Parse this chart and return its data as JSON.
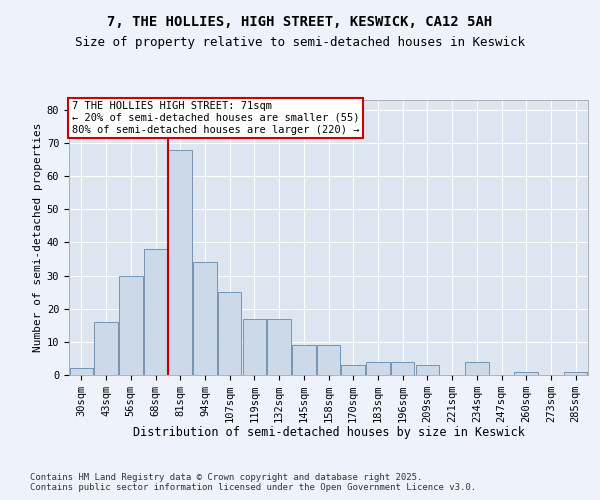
{
  "title1": "7, THE HOLLIES, HIGH STREET, KESWICK, CA12 5AH",
  "title2": "Size of property relative to semi-detached houses in Keswick",
  "xlabel": "Distribution of semi-detached houses by size in Keswick",
  "ylabel": "Number of semi-detached properties",
  "categories": [
    "30sqm",
    "43sqm",
    "56sqm",
    "68sqm",
    "81sqm",
    "94sqm",
    "107sqm",
    "119sqm",
    "132sqm",
    "145sqm",
    "158sqm",
    "170sqm",
    "183sqm",
    "196sqm",
    "209sqm",
    "221sqm",
    "234sqm",
    "247sqm",
    "260sqm",
    "273sqm",
    "285sqm"
  ],
  "values": [
    2,
    16,
    30,
    38,
    68,
    34,
    25,
    17,
    17,
    9,
    9,
    3,
    4,
    4,
    3,
    0,
    4,
    0,
    1,
    0,
    1
  ],
  "bar_color": "#ccd9e8",
  "bar_edge_color": "#6688aa",
  "vline_color": "#bb0000",
  "annotation_line1": "7 THE HOLLIES HIGH STREET: 71sqm",
  "annotation_line2": "← 20% of semi-detached houses are smaller (55)",
  "annotation_line3": "80% of semi-detached houses are larger (220) →",
  "annotation_box_edgecolor": "#cc0000",
  "footer": "Contains HM Land Registry data © Crown copyright and database right 2025.\nContains public sector information licensed under the Open Government Licence v3.0.",
  "ylim": [
    0,
    83
  ],
  "yticks": [
    0,
    10,
    20,
    30,
    40,
    50,
    60,
    70,
    80
  ],
  "fig_bg_color": "#eef2fa",
  "plot_bg_color": "#dde6f0",
  "title1_fontsize": 10,
  "title2_fontsize": 9,
  "xlabel_fontsize": 8.5,
  "ylabel_fontsize": 8,
  "tick_fontsize": 7.5,
  "ann_fontsize": 7.5,
  "footer_fontsize": 6.5,
  "vline_bar_index": 4
}
